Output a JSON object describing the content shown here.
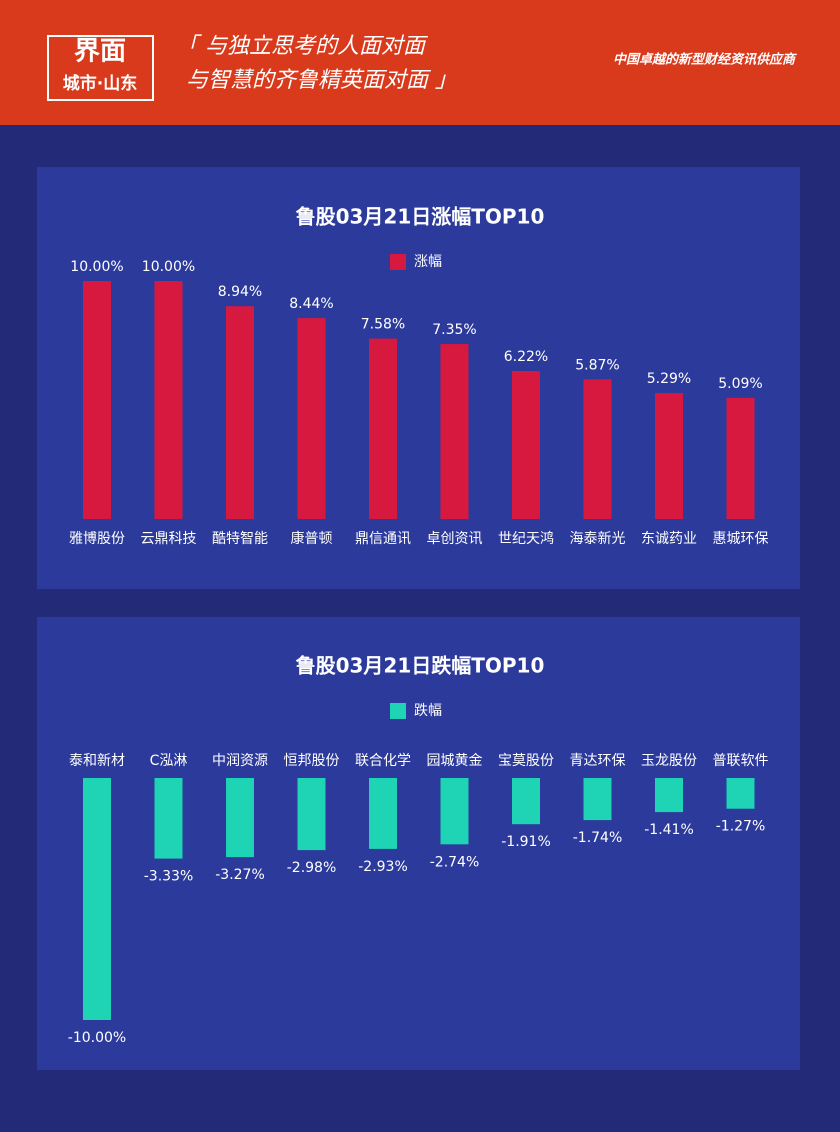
{
  "header": {
    "logo": "界面",
    "logo_sub": "城市·山东",
    "slogan_1": "「 与独立思考的人面对面",
    "slogan_2": "与智慧的齐鲁精英面对面 」",
    "tagline": "中国卓越的新型财经资讯供应商"
  },
  "chart_data": [
    {
      "type": "bar",
      "title": "鲁股03月21日涨幅TOP10",
      "categories": [
        "雅博股份",
        "云鼎科技",
        "酷特智能",
        "康普顿",
        "鼎信通讯",
        "卓创资讯",
        "世纪天鸿",
        "海泰新光",
        "东诚药业",
        "惠城环保"
      ],
      "series": [
        {
          "name": "涨幅",
          "color": "#d7193f",
          "values": [
            10.0,
            10.0,
            8.94,
            8.44,
            7.58,
            7.35,
            6.22,
            5.87,
            5.29,
            5.09
          ],
          "value_labels": [
            "10.00%",
            "10.00%",
            "8.94%",
            "8.44%",
            "7.58%",
            "7.35%",
            "6.22%",
            "5.87%",
            "5.29%",
            "5.09%"
          ]
        }
      ]
    },
    {
      "type": "bar",
      "title": "鲁股03月21日跌幅TOP10",
      "categories": [
        "泰和新材",
        "C泓淋",
        "中润资源",
        "恒邦股份",
        "联合化学",
        "园城黄金",
        "宝莫股份",
        "青达环保",
        "玉龙股份",
        "普联软件"
      ],
      "series": [
        {
          "name": "跌幅",
          "color": "#1fd3b5",
          "values": [
            -10.0,
            -3.33,
            -3.27,
            -2.98,
            -2.93,
            -2.74,
            -1.91,
            -1.74,
            -1.41,
            -1.27
          ],
          "value_labels": [
            "-10.00%",
            "-3.33%",
            "-3.27%",
            "-2.98%",
            "-2.93%",
            "-2.74%",
            "-1.91%",
            "-1.74%",
            "-1.41%",
            "-1.27%"
          ]
        }
      ]
    }
  ]
}
